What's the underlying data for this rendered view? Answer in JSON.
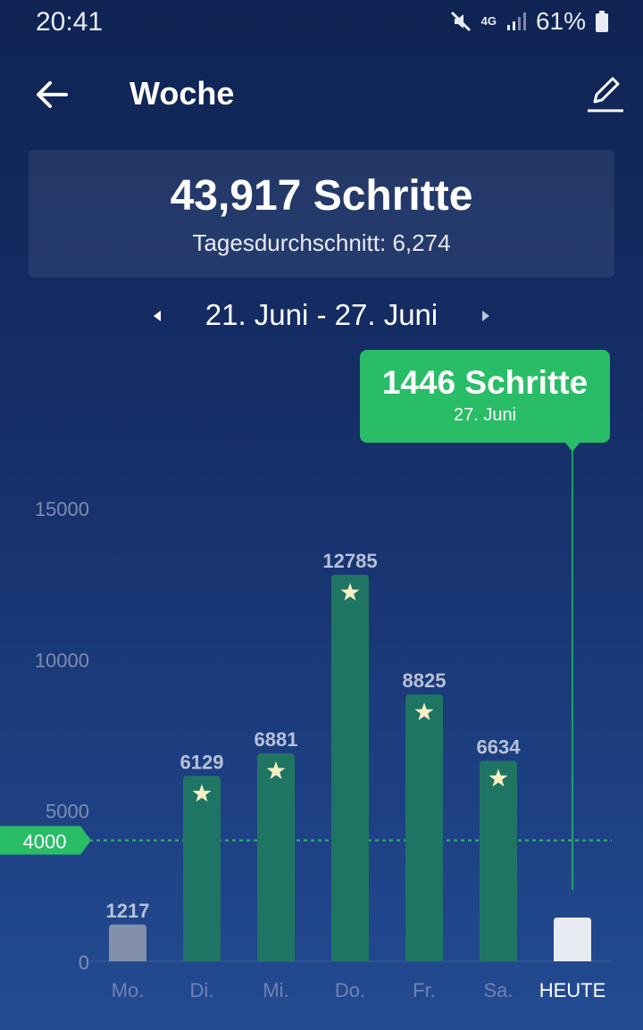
{
  "status": {
    "time": "20:41",
    "network": "4G",
    "battery": "61%"
  },
  "header": {
    "title": "Woche",
    "back_icon": "arrow-left-icon",
    "edit_icon": "pencil-icon"
  },
  "summary": {
    "total": "43,917 Schritte",
    "average_label": "Tagesdurchschnitt:",
    "average_value": "6,274"
  },
  "range": {
    "text": "21. Juni - 27. Juni"
  },
  "tooltip": {
    "value": "1446 Schritte",
    "date": "27. Juni"
  },
  "colors": {
    "goal_bar": "#1f7563",
    "below_goal_bar": "#8290ab",
    "today_bar": "#e8ebf2",
    "accent_green": "#28bd66"
  },
  "chart_data": {
    "type": "bar",
    "categories": [
      "Mo.",
      "Di.",
      "Mi.",
      "Do.",
      "Fr.",
      "Sa.",
      "HEUTE"
    ],
    "values": [
      1217,
      6129,
      6881,
      12785,
      8825,
      6634,
      1446
    ],
    "data_labels": [
      "1217",
      "6129",
      "6881",
      "12785",
      "8825",
      "6634",
      ""
    ],
    "goal_reached": [
      false,
      true,
      true,
      true,
      true,
      true,
      false
    ],
    "selected_index": 6,
    "goal": 4000,
    "goal_label": "4000",
    "ylim": [
      0,
      15000
    ],
    "yticks": [
      0,
      5000,
      10000,
      15000
    ],
    "ytick_labels": [
      "0",
      "5000",
      "10000",
      "15000"
    ],
    "grid": false
  }
}
